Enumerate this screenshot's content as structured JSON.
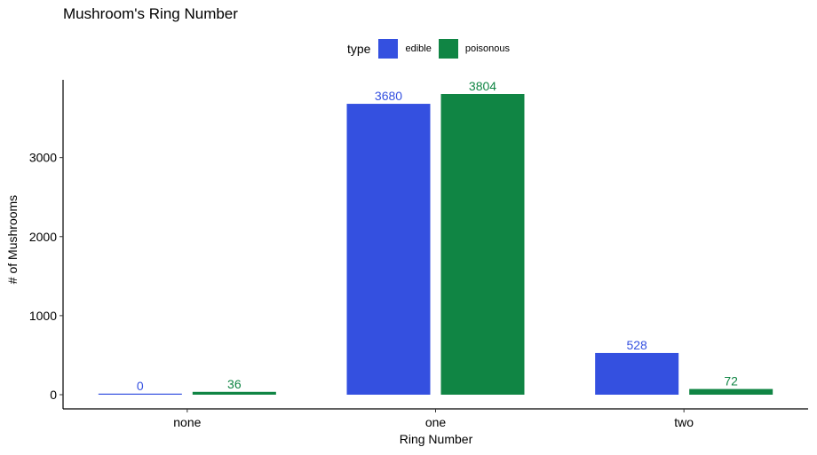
{
  "chart_data": {
    "type": "bar",
    "title": "Mushroom's Ring Number",
    "xlabel": "Ring Number",
    "ylabel": "# of Mushrooms",
    "categories": [
      "none",
      "one",
      "two"
    ],
    "legend_title": "type",
    "legend_position": "top",
    "grid": false,
    "ylim": [
      0,
      3804
    ],
    "yticks": [
      0,
      1000,
      2000,
      3000
    ],
    "series": [
      {
        "name": "edible",
        "values": [
          0,
          3680,
          528
        ],
        "color": "#3450e0"
      },
      {
        "name": "poisonous",
        "values": [
          36,
          3804,
          72
        ],
        "color": "#108544"
      }
    ],
    "data_labels": true
  }
}
